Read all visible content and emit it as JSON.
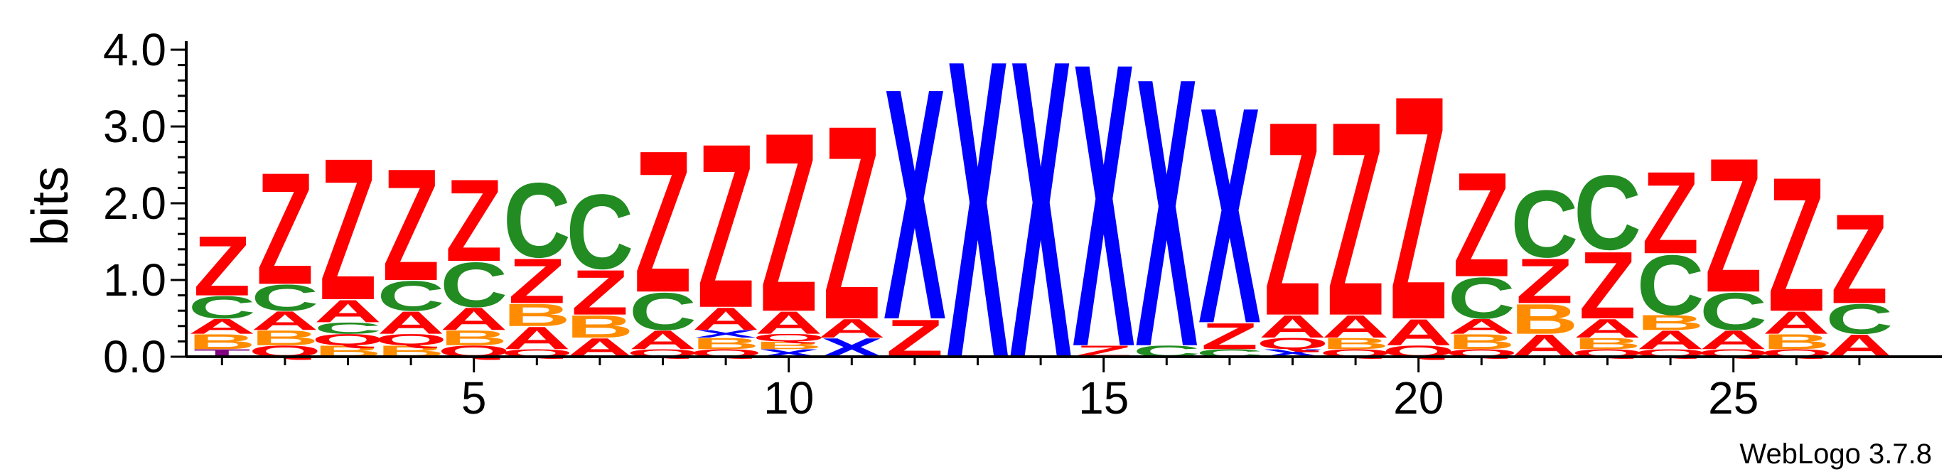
{
  "chart_data": {
    "type": "sequence-logo",
    "ylabel": "bits",
    "xlabel": "",
    "ylim": [
      0,
      4.0
    ],
    "y_ticks": [
      "0.0",
      "1.0",
      "2.0",
      "3.0",
      "4.0"
    ],
    "x_ticks": [
      5,
      10,
      15,
      20,
      25
    ],
    "footer": "WebLogo 3.7.8",
    "colors": {
      "Z": "#ff0000",
      "C": "#228b22",
      "A": "#ff0000",
      "B": "#ff8c00",
      "X": "#0000ff",
      "Q": "#ff0000",
      "T": "#800080"
    },
    "positions": [
      {
        "pos": 1,
        "stack": [
          [
            "T",
            0.1
          ],
          [
            "B",
            0.2
          ],
          [
            "A",
            0.2
          ],
          [
            "C",
            0.3
          ],
          [
            "Z",
            0.8
          ]
        ]
      },
      {
        "pos": 2,
        "stack": [
          [
            "Q",
            0.15
          ],
          [
            "B",
            0.2
          ],
          [
            "A",
            0.25
          ],
          [
            "C",
            0.35
          ],
          [
            "Z",
            1.5
          ]
        ]
      },
      {
        "pos": 3,
        "stack": [
          [
            "B",
            0.15
          ],
          [
            "Q",
            0.15
          ],
          [
            "C",
            0.15
          ],
          [
            "A",
            0.3
          ],
          [
            "Z",
            1.9
          ]
        ]
      },
      {
        "pos": 4,
        "stack": [
          [
            "B",
            0.15
          ],
          [
            "Q",
            0.15
          ],
          [
            "A",
            0.3
          ],
          [
            "C",
            0.4
          ],
          [
            "Z",
            1.5
          ]
        ]
      },
      {
        "pos": 5,
        "stack": [
          [
            "Q",
            0.15
          ],
          [
            "B",
            0.2
          ],
          [
            "A",
            0.3
          ],
          [
            "C",
            0.6
          ],
          [
            "Z",
            1.1
          ]
        ]
      },
      {
        "pos": 6,
        "stack": [
          [
            "Q",
            0.1
          ],
          [
            "A",
            0.3
          ],
          [
            "B",
            0.3
          ],
          [
            "Z",
            0.6
          ],
          [
            "C",
            1.0
          ]
        ]
      },
      {
        "pos": 7,
        "stack": [
          [
            "A",
            0.25
          ],
          [
            "B",
            0.3
          ],
          [
            "Z",
            0.6
          ],
          [
            "C",
            1.0
          ]
        ]
      },
      {
        "pos": 8,
        "stack": [
          [
            "Q",
            0.1
          ],
          [
            "A",
            0.25
          ],
          [
            "C",
            0.5
          ],
          [
            "Z",
            1.9
          ]
        ]
      },
      {
        "pos": 9,
        "stack": [
          [
            "Q",
            0.1
          ],
          [
            "B",
            0.15
          ],
          [
            "X",
            0.1
          ],
          [
            "A",
            0.3
          ],
          [
            "Z",
            2.2
          ]
        ]
      },
      {
        "pos": 10,
        "stack": [
          [
            "X",
            0.1
          ],
          [
            "B",
            0.1
          ],
          [
            "Q",
            0.1
          ],
          [
            "A",
            0.3
          ],
          [
            "Z",
            2.4
          ]
        ]
      },
      {
        "pos": 11,
        "stack": [
          [
            "X",
            0.25
          ],
          [
            "A",
            0.25
          ],
          [
            "Z",
            2.6
          ]
        ]
      },
      {
        "pos": 12,
        "stack": [
          [
            "Z",
            0.5
          ],
          [
            "X",
            3.1
          ]
        ]
      },
      {
        "pos": 13,
        "stack": [
          [
            "X",
            4.0
          ]
        ]
      },
      {
        "pos": 14,
        "stack": [
          [
            "X",
            4.0
          ]
        ]
      },
      {
        "pos": 15,
        "stack": [
          [
            "Z",
            0.15
          ],
          [
            "X",
            3.8
          ]
        ]
      },
      {
        "pos": 16,
        "stack": [
          [
            "C",
            0.15
          ],
          [
            "X",
            3.6
          ]
        ]
      },
      {
        "pos": 17,
        "stack": [
          [
            "C",
            0.1
          ],
          [
            "Z",
            0.35
          ],
          [
            "X",
            2.9
          ]
        ]
      },
      {
        "pos": 18,
        "stack": [
          [
            "X",
            0.1
          ],
          [
            "Q",
            0.15
          ],
          [
            "A",
            0.3
          ],
          [
            "Z",
            2.6
          ]
        ]
      },
      {
        "pos": 19,
        "stack": [
          [
            "Q",
            0.1
          ],
          [
            "B",
            0.15
          ],
          [
            "A",
            0.3
          ],
          [
            "Z",
            2.6
          ]
        ]
      },
      {
        "pos": 20,
        "stack": [
          [
            "Q",
            0.15
          ],
          [
            "A",
            0.35
          ],
          [
            "Z",
            3.0
          ]
        ]
      },
      {
        "pos": 21,
        "stack": [
          [
            "Q",
            0.1
          ],
          [
            "B",
            0.2
          ],
          [
            "A",
            0.2
          ],
          [
            "C",
            0.55
          ],
          [
            "Z",
            1.4
          ]
        ]
      },
      {
        "pos": 22,
        "stack": [
          [
            "A",
            0.3
          ],
          [
            "B",
            0.4
          ],
          [
            "Z",
            0.6
          ],
          [
            "C",
            0.9
          ]
        ]
      },
      {
        "pos": 23,
        "stack": [
          [
            "Q",
            0.1
          ],
          [
            "B",
            0.15
          ],
          [
            "A",
            0.25
          ],
          [
            "Z",
            0.9
          ],
          [
            "C",
            1.0
          ]
        ]
      },
      {
        "pos": 24,
        "stack": [
          [
            "Q",
            0.1
          ],
          [
            "A",
            0.25
          ],
          [
            "B",
            0.2
          ],
          [
            "C",
            0.8
          ],
          [
            "Z",
            1.1
          ]
        ]
      },
      {
        "pos": 25,
        "stack": [
          [
            "Q",
            0.1
          ],
          [
            "A",
            0.25
          ],
          [
            "C",
            0.5
          ],
          [
            "Z",
            1.8
          ]
        ]
      },
      {
        "pos": 26,
        "stack": [
          [
            "Q",
            0.1
          ],
          [
            "B",
            0.2
          ],
          [
            "A",
            0.3
          ],
          [
            "Z",
            1.8
          ]
        ]
      },
      {
        "pos": 27,
        "stack": [
          [
            "A",
            0.3
          ],
          [
            "C",
            0.4
          ],
          [
            "Z",
            1.2
          ]
        ]
      }
    ]
  }
}
